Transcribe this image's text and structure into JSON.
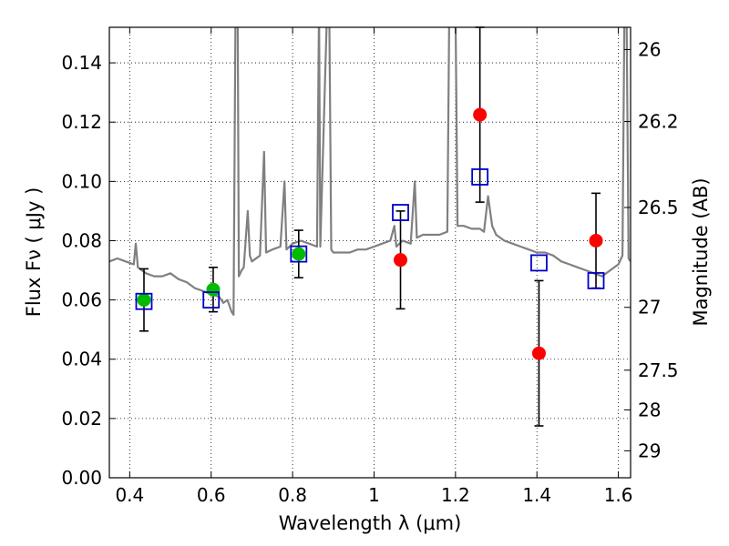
{
  "chart_data": {
    "type": "scatter",
    "title": "",
    "xlabel": "Wavelength  λ (μm)",
    "ylabel": "Flux  Fν  ( μJy )",
    "ylabel_right": "Magnitude (AB)",
    "xlim": [
      0.35,
      1.63
    ],
    "ylim": [
      0.0,
      0.152
    ],
    "grid": true,
    "x_ticks": [
      0.4,
      0.6,
      0.8,
      1.0,
      1.2,
      1.4,
      1.6
    ],
    "x_tick_labels": [
      "0.4",
      "0.6",
      "0.8",
      "1",
      "1.2",
      "1.4",
      "1.6"
    ],
    "y_ticks": [
      0.0,
      0.02,
      0.04,
      0.06,
      0.08,
      0.1,
      0.12,
      0.14
    ],
    "y_tick_labels": [
      "0.00",
      "0.02",
      "0.04",
      "0.06",
      "0.08",
      "0.10",
      "0.12",
      "0.14"
    ],
    "right_ticks": [
      {
        "label": "26",
        "flux": 0.1445
      },
      {
        "label": "26.2",
        "flux": 0.1202
      },
      {
        "label": "26.5",
        "flux": 0.0912
      },
      {
        "label": "27",
        "flux": 0.0575
      },
      {
        "label": "27.5",
        "flux": 0.0363
      },
      {
        "label": "28",
        "flux": 0.0229
      },
      {
        "label": "29",
        "flux": 0.0091
      }
    ],
    "colors": {
      "template": "#808080",
      "detection": "#00bb00",
      "measured": "#ff0000",
      "model": "#0000cc",
      "errorbar": "#000000"
    },
    "series": [
      {
        "kind": "template",
        "points": [
          [
            0.35,
            0.073
          ],
          [
            0.37,
            0.074
          ],
          [
            0.39,
            0.073
          ],
          [
            0.41,
            0.072
          ],
          [
            0.415,
            0.079
          ],
          [
            0.42,
            0.071
          ],
          [
            0.44,
            0.069
          ],
          [
            0.46,
            0.068
          ],
          [
            0.48,
            0.068
          ],
          [
            0.5,
            0.069
          ],
          [
            0.52,
            0.067
          ],
          [
            0.54,
            0.066
          ],
          [
            0.56,
            0.064
          ],
          [
            0.58,
            0.063
          ],
          [
            0.6,
            0.062
          ],
          [
            0.62,
            0.061
          ],
          [
            0.63,
            0.059
          ],
          [
            0.64,
            0.06
          ],
          [
            0.65,
            0.056
          ],
          [
            0.655,
            0.055
          ],
          [
            0.66,
            0.16
          ],
          [
            0.665,
            0.16
          ],
          [
            0.668,
            0.068
          ],
          [
            0.675,
            0.07
          ],
          [
            0.68,
            0.071
          ],
          [
            0.69,
            0.09
          ],
          [
            0.695,
            0.075
          ],
          [
            0.7,
            0.073
          ],
          [
            0.72,
            0.075
          ],
          [
            0.73,
            0.11
          ],
          [
            0.735,
            0.076
          ],
          [
            0.75,
            0.077
          ],
          [
            0.77,
            0.078
          ],
          [
            0.78,
            0.1
          ],
          [
            0.785,
            0.077
          ],
          [
            0.8,
            0.079
          ],
          [
            0.82,
            0.08
          ],
          [
            0.84,
            0.079
          ],
          [
            0.86,
            0.078
          ],
          [
            0.865,
            0.16
          ],
          [
            0.868,
            0.078
          ],
          [
            0.885,
            0.16
          ],
          [
            0.89,
            0.16
          ],
          [
            0.895,
            0.077
          ],
          [
            0.9,
            0.076
          ],
          [
            0.92,
            0.076
          ],
          [
            0.94,
            0.076
          ],
          [
            0.96,
            0.077
          ],
          [
            0.98,
            0.077
          ],
          [
            1.0,
            0.078
          ],
          [
            1.02,
            0.079
          ],
          [
            1.04,
            0.08
          ],
          [
            1.05,
            0.085
          ],
          [
            1.055,
            0.078
          ],
          [
            1.07,
            0.08
          ],
          [
            1.09,
            0.079
          ],
          [
            1.1,
            0.1
          ],
          [
            1.105,
            0.081
          ],
          [
            1.12,
            0.082
          ],
          [
            1.14,
            0.082
          ],
          [
            1.16,
            0.082
          ],
          [
            1.18,
            0.083
          ],
          [
            1.185,
            0.16
          ],
          [
            1.19,
            0.16
          ],
          [
            1.2,
            0.16
          ],
          [
            1.205,
            0.085
          ],
          [
            1.22,
            0.085
          ],
          [
            1.24,
            0.084
          ],
          [
            1.26,
            0.084
          ],
          [
            1.27,
            0.083
          ],
          [
            1.28,
            0.095
          ],
          [
            1.29,
            0.085
          ],
          [
            1.3,
            0.082
          ],
          [
            1.32,
            0.08
          ],
          [
            1.34,
            0.079
          ],
          [
            1.36,
            0.078
          ],
          [
            1.38,
            0.077
          ],
          [
            1.4,
            0.076
          ],
          [
            1.42,
            0.076
          ],
          [
            1.44,
            0.075
          ],
          [
            1.46,
            0.073
          ],
          [
            1.48,
            0.072
          ],
          [
            1.5,
            0.071
          ],
          [
            1.52,
            0.07
          ],
          [
            1.54,
            0.069
          ],
          [
            1.56,
            0.068
          ],
          [
            1.58,
            0.07
          ],
          [
            1.6,
            0.072
          ],
          [
            1.61,
            0.075
          ],
          [
            1.615,
            0.16
          ],
          [
            1.62,
            0.16
          ],
          [
            1.625,
            0.074
          ],
          [
            1.63,
            0.073
          ]
        ]
      },
      {
        "kind": "detection",
        "points": [
          {
            "x": 0.435,
            "y": 0.06,
            "err": 0.0105
          },
          {
            "x": 0.605,
            "y": 0.0635,
            "err": 0.0075
          },
          {
            "x": 0.815,
            "y": 0.0755,
            "err": 0.008
          }
        ]
      },
      {
        "kind": "measured",
        "points": [
          {
            "x": 1.065,
            "y": 0.0735,
            "err": 0.0165
          },
          {
            "x": 1.26,
            "y": 0.1225,
            "err": 0.0295
          },
          {
            "x": 1.405,
            "y": 0.042,
            "err": 0.0245
          },
          {
            "x": 1.545,
            "y": 0.08,
            "err": 0.016
          }
        ]
      },
      {
        "kind": "model",
        "points": [
          {
            "x": 0.435,
            "y": 0.0595
          },
          {
            "x": 0.6,
            "y": 0.06
          },
          {
            "x": 0.815,
            "y": 0.0755
          },
          {
            "x": 1.065,
            "y": 0.0895
          },
          {
            "x": 1.26,
            "y": 0.1015
          },
          {
            "x": 1.405,
            "y": 0.0725
          },
          {
            "x": 1.545,
            "y": 0.0665
          }
        ]
      }
    ]
  }
}
